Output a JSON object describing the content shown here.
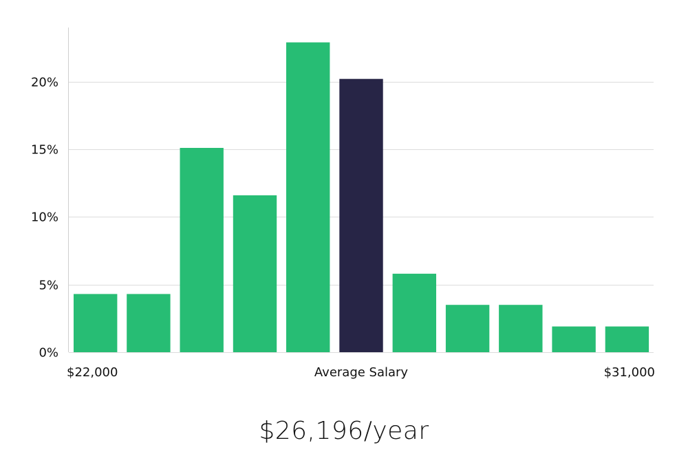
{
  "chart_data": {
    "type": "bar",
    "title": "",
    "xlabel": "Average Salary",
    "ylabel": "",
    "x_range_labels": {
      "min": "$22,000",
      "max": "$31,000"
    },
    "y_ticks": [
      {
        "value": 0,
        "label": "0%"
      },
      {
        "value": 5,
        "label": "5%"
      },
      {
        "value": 10,
        "label": "10%"
      },
      {
        "value": 15,
        "label": "15%"
      },
      {
        "value": 20,
        "label": "20%"
      }
    ],
    "ylim": [
      0,
      24
    ],
    "values": [
      4.3,
      4.3,
      15.1,
      11.6,
      22.9,
      20.2,
      5.8,
      3.5,
      3.5,
      1.9,
      1.9
    ],
    "highlight_index": 5,
    "colors": {
      "bar": "#27bd74",
      "highlight": "#272546",
      "grid": "#dcdcdc",
      "axis": "#cfcfcf"
    }
  },
  "summary": {
    "salary_text": "$26,196/year"
  }
}
